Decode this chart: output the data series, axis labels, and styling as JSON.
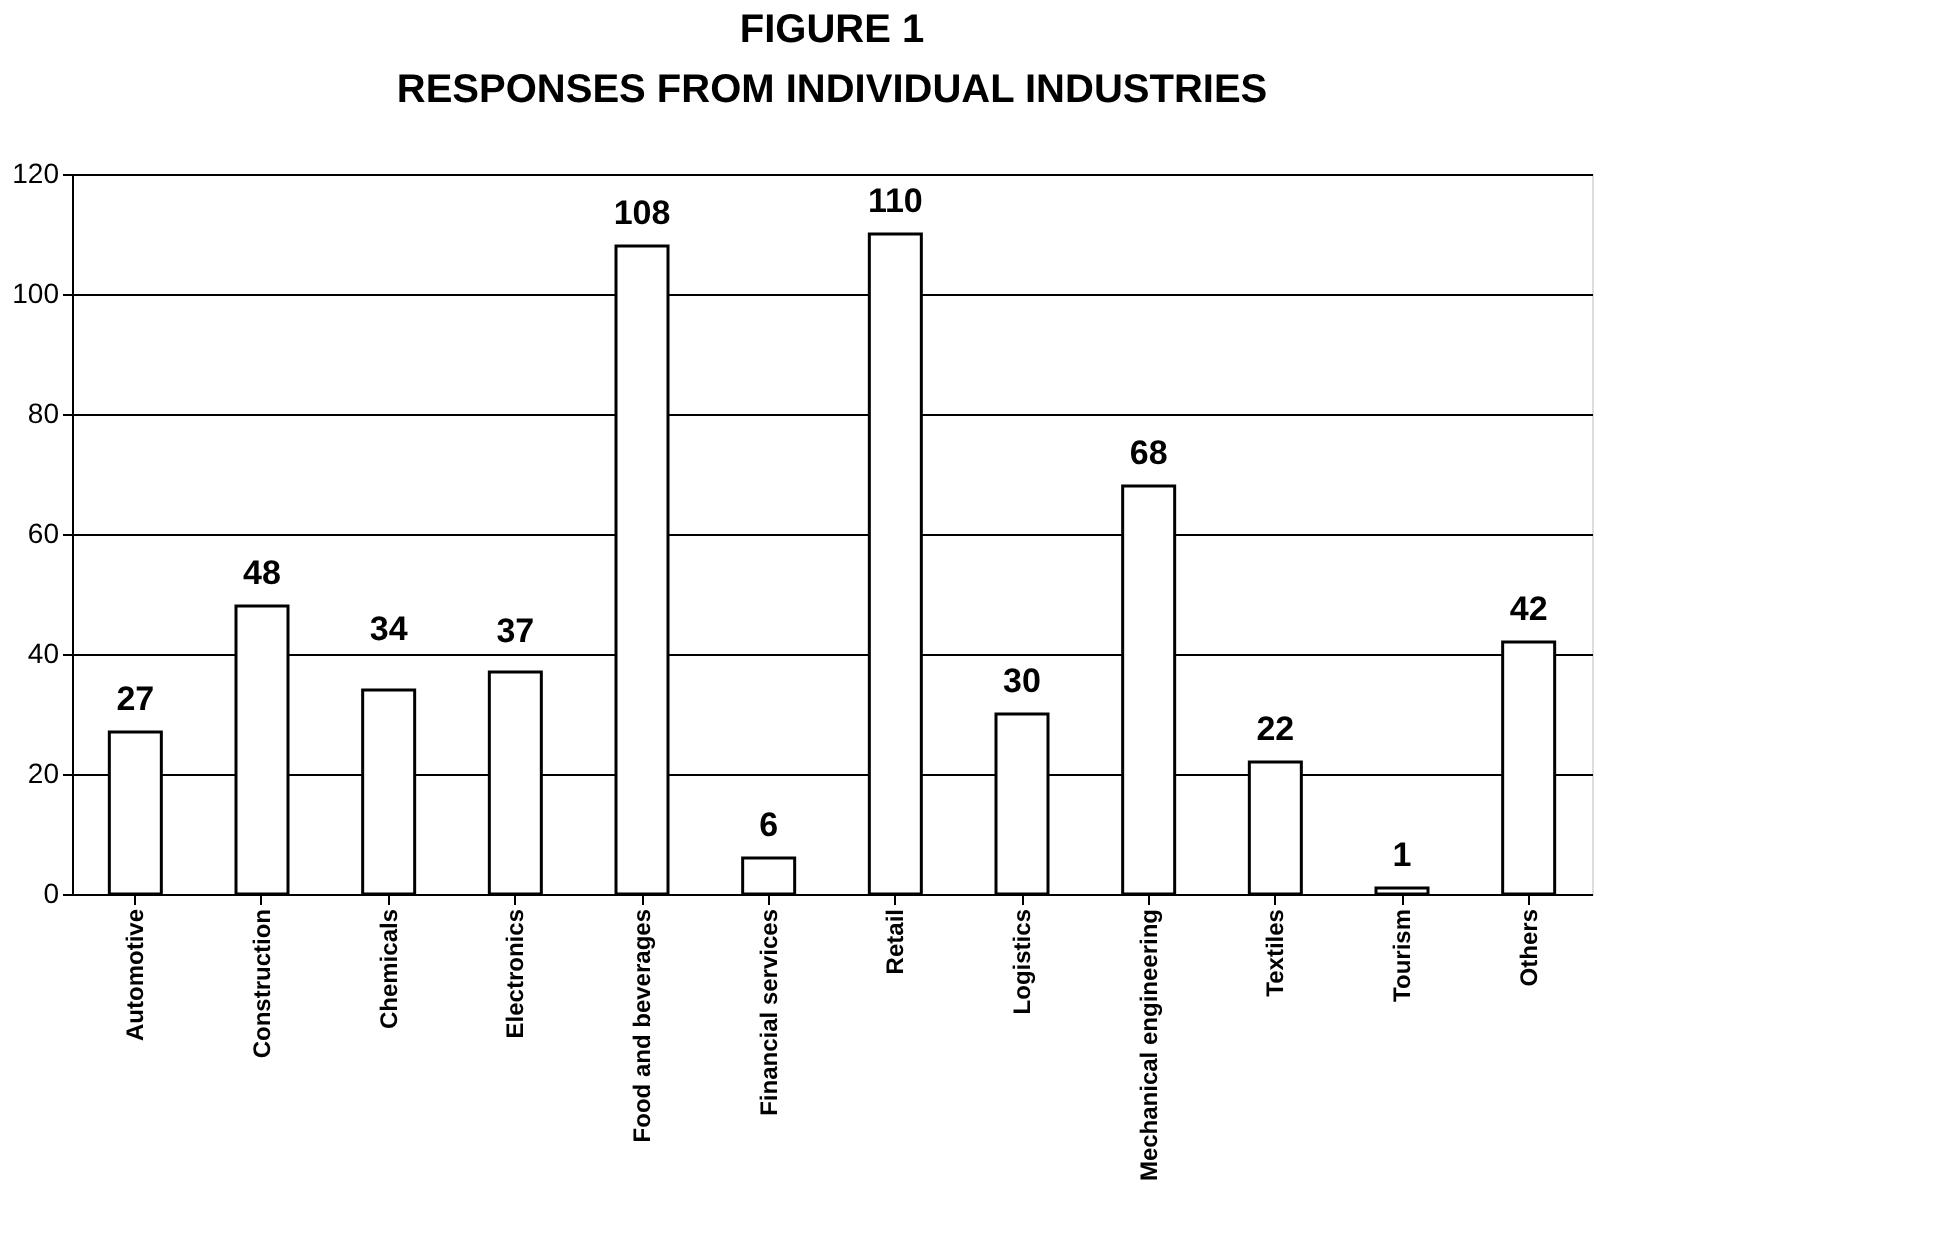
{
  "chart_data": {
    "type": "bar",
    "title": "FIGURE 1",
    "subtitle": "RESPONSES FROM INDIVIDUAL INDUSTRIES",
    "categories": [
      "Automotive",
      "Construction",
      "Chemicals",
      "Electronics",
      "Food and beverages",
      "Financial services",
      "Retail",
      "Logistics",
      "Mechanical engineering",
      "Textiles",
      "Tourism",
      "Others"
    ],
    "values": [
      27,
      48,
      34,
      37,
      108,
      6,
      110,
      30,
      68,
      22,
      1,
      42
    ],
    "color": "#ffffff",
    "ylim": [
      0,
      120
    ],
    "yticks": [
      0,
      20,
      40,
      60,
      80,
      100,
      120
    ],
    "grid": "y",
    "data_labels": true
  }
}
